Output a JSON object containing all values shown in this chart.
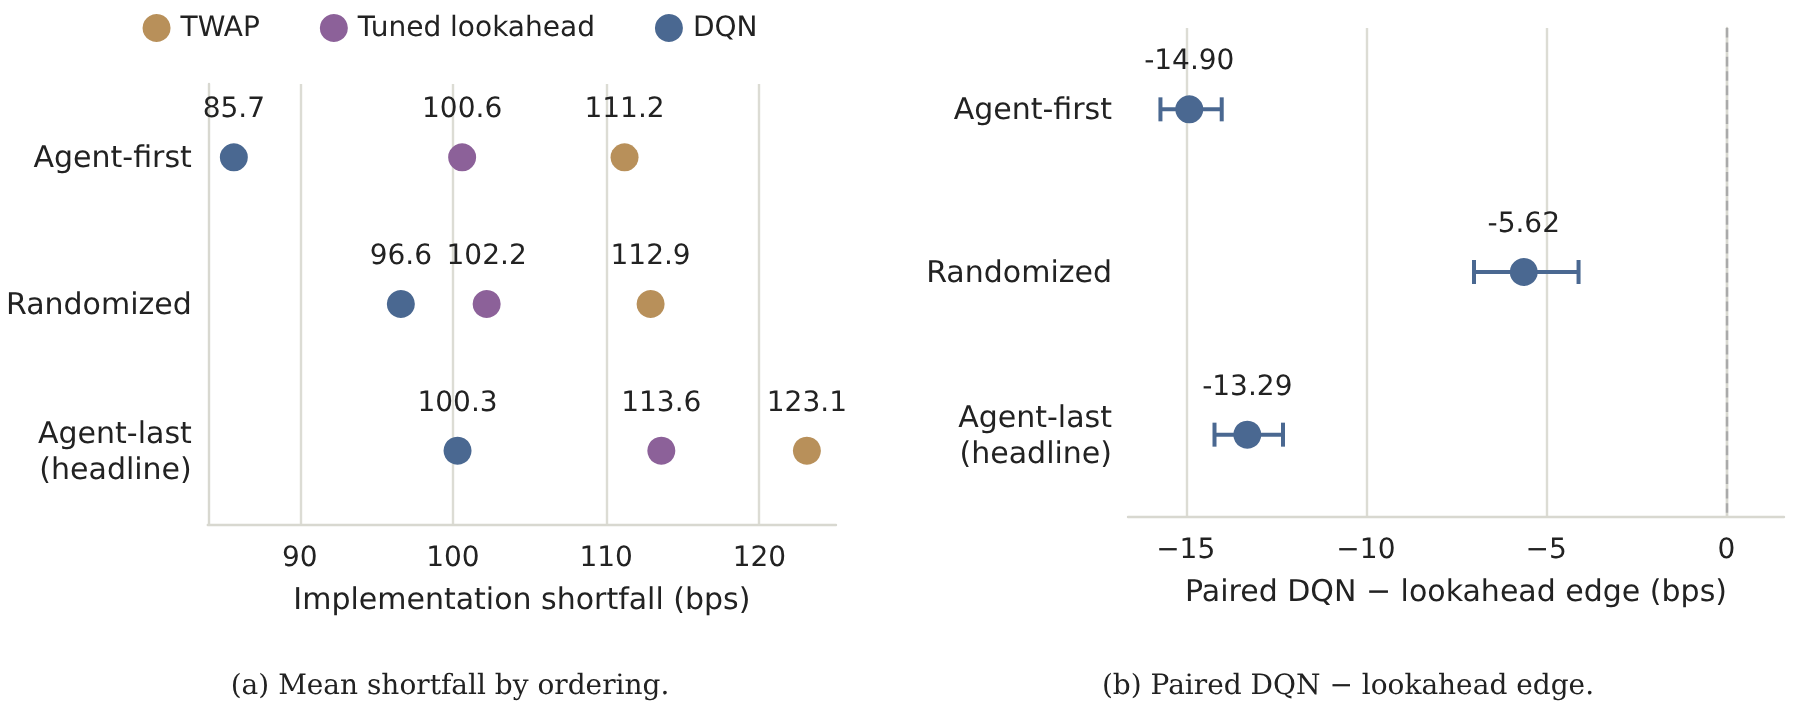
{
  "chart_data": [
    {
      "type": "scatter",
      "orientation": "horizontal",
      "title": "(a) Mean shortfall by ordering.",
      "xlabel": "Implementation shortfall (bps)",
      "categories": [
        "Agent-first",
        "Randomized",
        "Agent-last\n(headline)"
      ],
      "xlim": [
        84,
        125
      ],
      "xticks": [
        90,
        100,
        110,
        120
      ],
      "grid": "x",
      "legend": "top",
      "marker": "circle",
      "data_labels": true,
      "series": [
        {
          "name": "TWAP",
          "color": "#b8905a",
          "values": [
            111.2,
            112.9,
            123.1
          ]
        },
        {
          "name": "Tuned lookahead",
          "color": "#8c6199",
          "values": [
            100.6,
            102.2,
            113.6
          ]
        },
        {
          "name": "DQN",
          "color": "#4a6891",
          "values": [
            85.7,
            96.6,
            100.3
          ]
        }
      ]
    },
    {
      "type": "scatter",
      "orientation": "horizontal",
      "title": "(b) Paired DQN − lookahead edge.",
      "xlabel": "Paired DQN − lookahead edge (bps)",
      "categories": [
        "Agent-first",
        "Randomized",
        "Agent-last\n(headline)"
      ],
      "xlim": [
        -16.6,
        1.6
      ],
      "xticks": [
        {
          "value": -15,
          "label": "−15"
        },
        {
          "value": -10,
          "label": "−10"
        },
        {
          "value": -5,
          "label": "−5"
        },
        0
      ],
      "grid": "x",
      "marker": "circle",
      "ref_lines": [
        {
          "axis": "x",
          "value": 0,
          "color": "#aaaaaa",
          "line_style": "dashed"
        }
      ],
      "series": [
        {
          "color": "#4a6891",
          "values": [
            -14.9,
            -5.62,
            -13.29
          ],
          "value_labels": [
            "-14.90",
            "-5.62",
            "-13.29"
          ],
          "errors": [
            [
              -15.7,
              -14.0
            ],
            [
              -7.0,
              -4.1
            ],
            [
              -14.2,
              -12.3
            ]
          ]
        }
      ]
    }
  ]
}
